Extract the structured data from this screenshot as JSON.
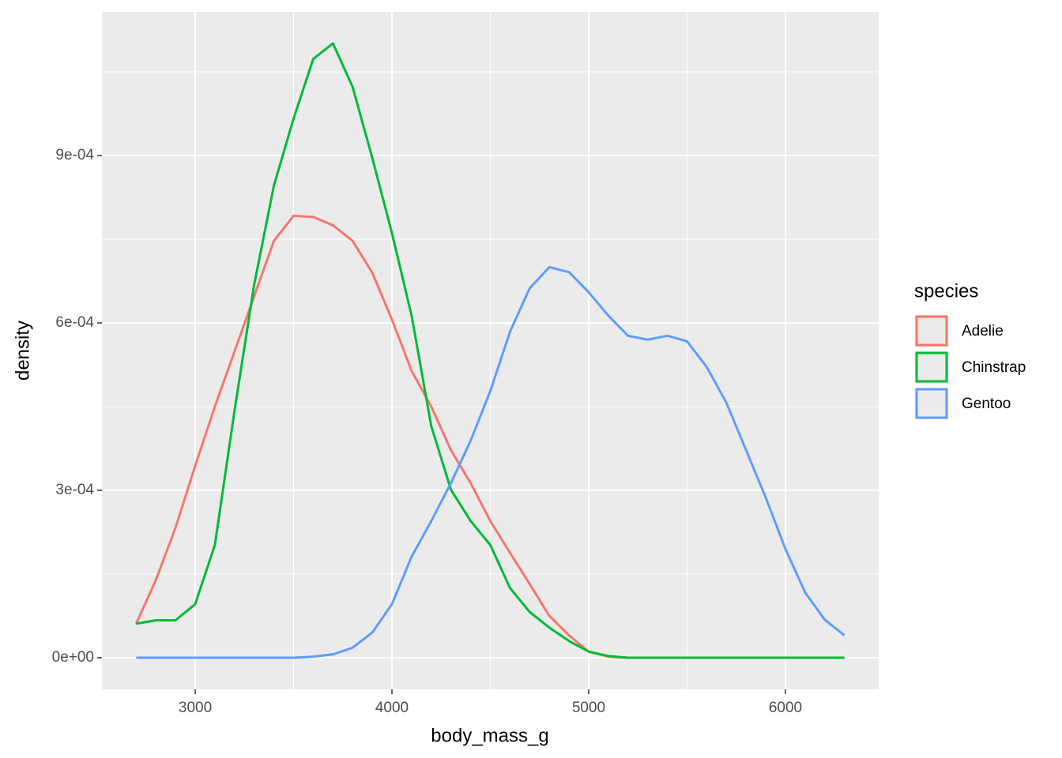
{
  "chart_data": {
    "type": "line",
    "x_label": "body_mass_g",
    "y_label": "density",
    "legend_title": "species",
    "x": [
      2700,
      2800,
      2900,
      3000,
      3100,
      3200,
      3300,
      3400,
      3500,
      3600,
      3700,
      3800,
      3900,
      4000,
      4100,
      4200,
      4300,
      4400,
      4500,
      4600,
      4700,
      4800,
      4900,
      5000,
      5100,
      5200,
      5300,
      5400,
      5500,
      5600,
      5700,
      5800,
      5900,
      6000,
      6100,
      6200,
      6300
    ],
    "series": [
      {
        "name": "Adelie",
        "color": "#f8766d",
        "values": [
          6.1e-05,
          0.000139,
          0.000233,
          0.000344,
          0.00045,
          0.000549,
          0.000648,
          0.000747,
          0.000792,
          0.00079,
          0.000775,
          0.000747,
          0.00069,
          0.000606,
          0.000514,
          0.00045,
          0.000372,
          0.000313,
          0.000245,
          0.000188,
          0.000132,
          7.5e-05,
          4e-05,
          1.1e-05,
          2e-06,
          0,
          0,
          0,
          0,
          0,
          0,
          0,
          0,
          0,
          0,
          0,
          0
        ]
      },
      {
        "name": "Chinstrap",
        "color": "#00ba38",
        "values": [
          6.1e-05,
          6.7e-05,
          6.7e-05,
          9.6e-05,
          0.000202,
          0.000443,
          0.000669,
          0.000846,
          0.000966,
          0.001073,
          0.001101,
          0.001023,
          0.000896,
          0.000761,
          0.000613,
          0.000415,
          0.000301,
          0.000245,
          0.000202,
          0.000125,
          8.2e-05,
          5.4e-05,
          3e-05,
          1.1e-05,
          3e-06,
          0,
          0,
          0,
          0,
          0,
          0,
          0,
          0,
          0,
          0,
          0,
          0
        ]
      },
      {
        "name": "Gentoo",
        "color": "#619cff",
        "values": [
          0,
          0,
          0,
          0,
          0,
          0,
          0,
          0,
          0,
          2e-06,
          6e-06,
          1.8e-05,
          4.5e-05,
          9.6e-05,
          0.000181,
          0.000245,
          0.000313,
          0.000389,
          0.000478,
          0.000584,
          0.000662,
          0.0007,
          0.000691,
          0.000655,
          0.000613,
          0.000577,
          0.00057,
          0.000577,
          0.000567,
          0.000521,
          0.000457,
          0.000372,
          0.000287,
          0.000195,
          0.000117,
          6.8e-05,
          4e-05
        ]
      }
    ],
    "xlim": [
      2526,
      6474
    ],
    "ylim": [
      -5.66e-05,
      0.0011575
    ],
    "xticks": [
      3000,
      4000,
      5000,
      6000
    ],
    "yticks": [
      {
        "value": 0,
        "label": "0e+00"
      },
      {
        "value": 0.0003,
        "label": "3e-04"
      },
      {
        "value": 0.0006,
        "label": "6e-04"
      },
      {
        "value": 0.0009,
        "label": "9e-04"
      }
    ],
    "minor_xticks": [
      3500,
      4500,
      5500
    ],
    "minor_yticks": [
      0.00015,
      0.00045,
      0.00075,
      0.00105
    ],
    "grid": true,
    "legend": "right"
  }
}
